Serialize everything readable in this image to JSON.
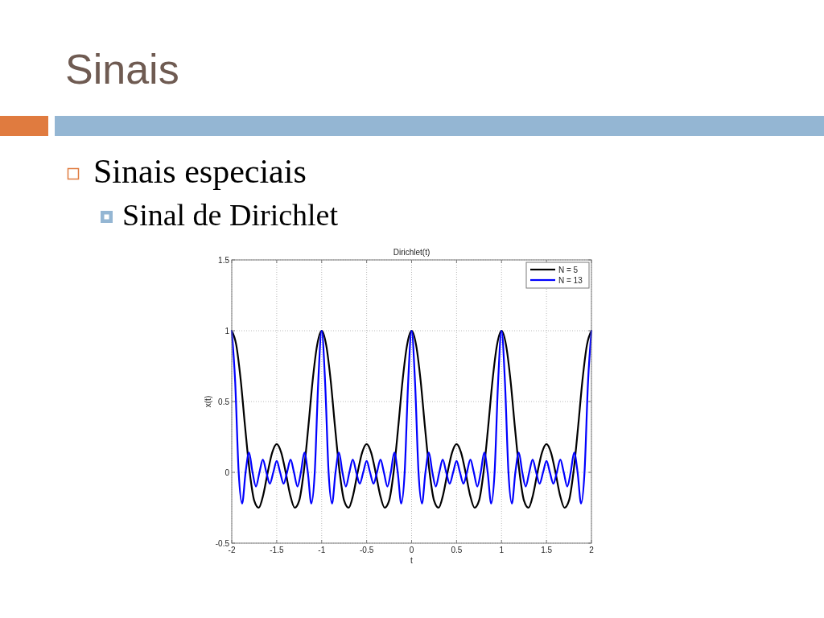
{
  "chart_data": {
    "type": "line",
    "title": "Dirichlet(t)",
    "xlabel": "t",
    "ylabel": "x(t)",
    "annotations": [
      "Sinais",
      "Sinais especiais",
      "Sinal de Dirichlet"
    ],
    "xlim": [
      -2,
      2
    ],
    "xticks": [
      -2,
      -1.5,
      -1,
      -0.5,
      0,
      0.5,
      1,
      1.5,
      2
    ],
    "ylim": [
      -0.5,
      1.5
    ],
    "yticks": [
      -0.5,
      0,
      0.5,
      1,
      1.5
    ],
    "grid": true,
    "legend": "top right",
    "series": [
      {
        "name": "N = 5",
        "color": "#000000",
        "x": [
          -2,
          -1.95,
          -1.9,
          -1.85,
          -1.8,
          -1.75,
          -1.7,
          -1.65,
          -1.6,
          -1.55,
          -1.5,
          -1.45,
          -1.4,
          -1.35,
          -1.3,
          -1.25,
          -1.2,
          -1.15,
          -1.1,
          -1.05,
          -1,
          -0.95,
          -0.9,
          -0.85,
          -0.8,
          -0.75,
          -0.7,
          -0.65,
          -0.6,
          -0.55,
          -0.5,
          -0.45,
          -0.4,
          -0.35,
          -0.3,
          -0.25,
          -0.2,
          -0.15,
          -0.1,
          -0.05,
          0,
          0.05,
          0.1,
          0.15,
          0.2,
          0.25,
          0.3,
          0.35,
          0.4,
          0.45,
          0.5,
          0.55,
          0.6,
          0.65,
          0.7,
          0.75,
          0.8,
          0.85,
          0.9,
          0.95,
          1,
          1.05,
          1.1,
          1.15,
          1.2,
          1.25,
          1.3,
          1.35,
          1.4,
          1.45,
          1.5,
          1.55,
          1.6,
          1.65,
          1.7,
          1.75,
          1.8,
          1.85,
          1.9,
          1.95,
          2
        ],
        "values": [
          1,
          0.9,
          0.65,
          0.31,
          0,
          -0.2,
          -0.25,
          -0.16,
          0,
          0.14,
          0.2,
          0.14,
          0,
          -0.16,
          -0.25,
          -0.2,
          0,
          0.31,
          0.65,
          0.9,
          1,
          0.9,
          0.65,
          0.31,
          0,
          -0.2,
          -0.25,
          -0.16,
          0,
          0.14,
          0.2,
          0.14,
          0,
          -0.16,
          -0.25,
          -0.2,
          0,
          0.31,
          0.65,
          0.9,
          1,
          0.9,
          0.65,
          0.31,
          0,
          -0.2,
          -0.25,
          -0.16,
          0,
          0.14,
          0.2,
          0.14,
          0,
          -0.16,
          -0.25,
          -0.2,
          0,
          0.31,
          0.65,
          0.9,
          1,
          0.9,
          0.65,
          0.31,
          0,
          -0.2,
          -0.25,
          -0.16,
          0,
          0.14,
          0.2,
          0.14,
          0,
          -0.16,
          -0.25,
          -0.2,
          0,
          0.31,
          0.65,
          0.9,
          1
        ]
      },
      {
        "name": "N = 13",
        "color": "#0000ff",
        "x": [
          -2,
          -1.962,
          -1.923,
          -1.885,
          -1.846,
          -1.808,
          -1.769,
          -1.731,
          -1.692,
          -1.654,
          -1.615,
          -1.577,
          -1.538,
          -1.5,
          -1.462,
          -1.423,
          -1.385,
          -1.346,
          -1.308,
          -1.269,
          -1.231,
          -1.192,
          -1.154,
          -1.115,
          -1.077,
          -1.038,
          -1,
          -0.962,
          -0.923,
          -0.885,
          -0.846,
          -0.808,
          -0.769,
          -0.731,
          -0.692,
          -0.654,
          -0.615,
          -0.577,
          -0.538,
          -0.5,
          -0.462,
          -0.423,
          -0.385,
          -0.346,
          -0.308,
          -0.269,
          -0.231,
          -0.192,
          -0.154,
          -0.115,
          -0.077,
          -0.038,
          0,
          0.038,
          0.077,
          0.115,
          0.154,
          0.192,
          0.231,
          0.269,
          0.308,
          0.346,
          0.385,
          0.423,
          0.462,
          0.5,
          0.538,
          0.577,
          0.615,
          0.654,
          0.692,
          0.731,
          0.769,
          0.808,
          0.846,
          0.885,
          0.923,
          0.962,
          1,
          1.038,
          1.077,
          1.115,
          1.154,
          1.192,
          1.231,
          1.269,
          1.308,
          1.346,
          1.385,
          1.423,
          1.462,
          1.5,
          1.538,
          1.577,
          1.615,
          1.654,
          1.692,
          1.731,
          1.769,
          1.808,
          1.846,
          1.885,
          1.923,
          1.962,
          2
        ],
        "values": [
          1,
          0.64,
          0,
          -0.22,
          0,
          0.14,
          0,
          -0.1,
          0,
          0.09,
          0,
          -0.08,
          0,
          0.08,
          0,
          -0.08,
          0,
          0.09,
          0,
          -0.1,
          0,
          0.14,
          0,
          -0.22,
          0,
          0.64,
          1,
          0.64,
          0,
          -0.22,
          0,
          0.14,
          0,
          -0.1,
          0,
          0.09,
          0,
          -0.08,
          0,
          0.08,
          0,
          -0.08,
          0,
          0.09,
          0,
          -0.1,
          0,
          0.14,
          0,
          -0.22,
          0,
          0.64,
          1,
          0.64,
          0,
          -0.22,
          0,
          0.14,
          0,
          -0.1,
          0,
          0.09,
          0,
          -0.08,
          0,
          0.08,
          0,
          -0.08,
          0,
          0.09,
          0,
          -0.1,
          0,
          0.14,
          0,
          -0.22,
          0,
          0.64,
          1,
          0.64,
          0,
          -0.22,
          0,
          0.14,
          0,
          -0.1,
          0,
          0.09,
          0,
          -0.08,
          0,
          0.08,
          0,
          -0.08,
          0,
          0.09,
          0,
          -0.1,
          0,
          0.14,
          0,
          -0.22,
          0,
          0.64,
          1
        ]
      }
    ]
  }
}
